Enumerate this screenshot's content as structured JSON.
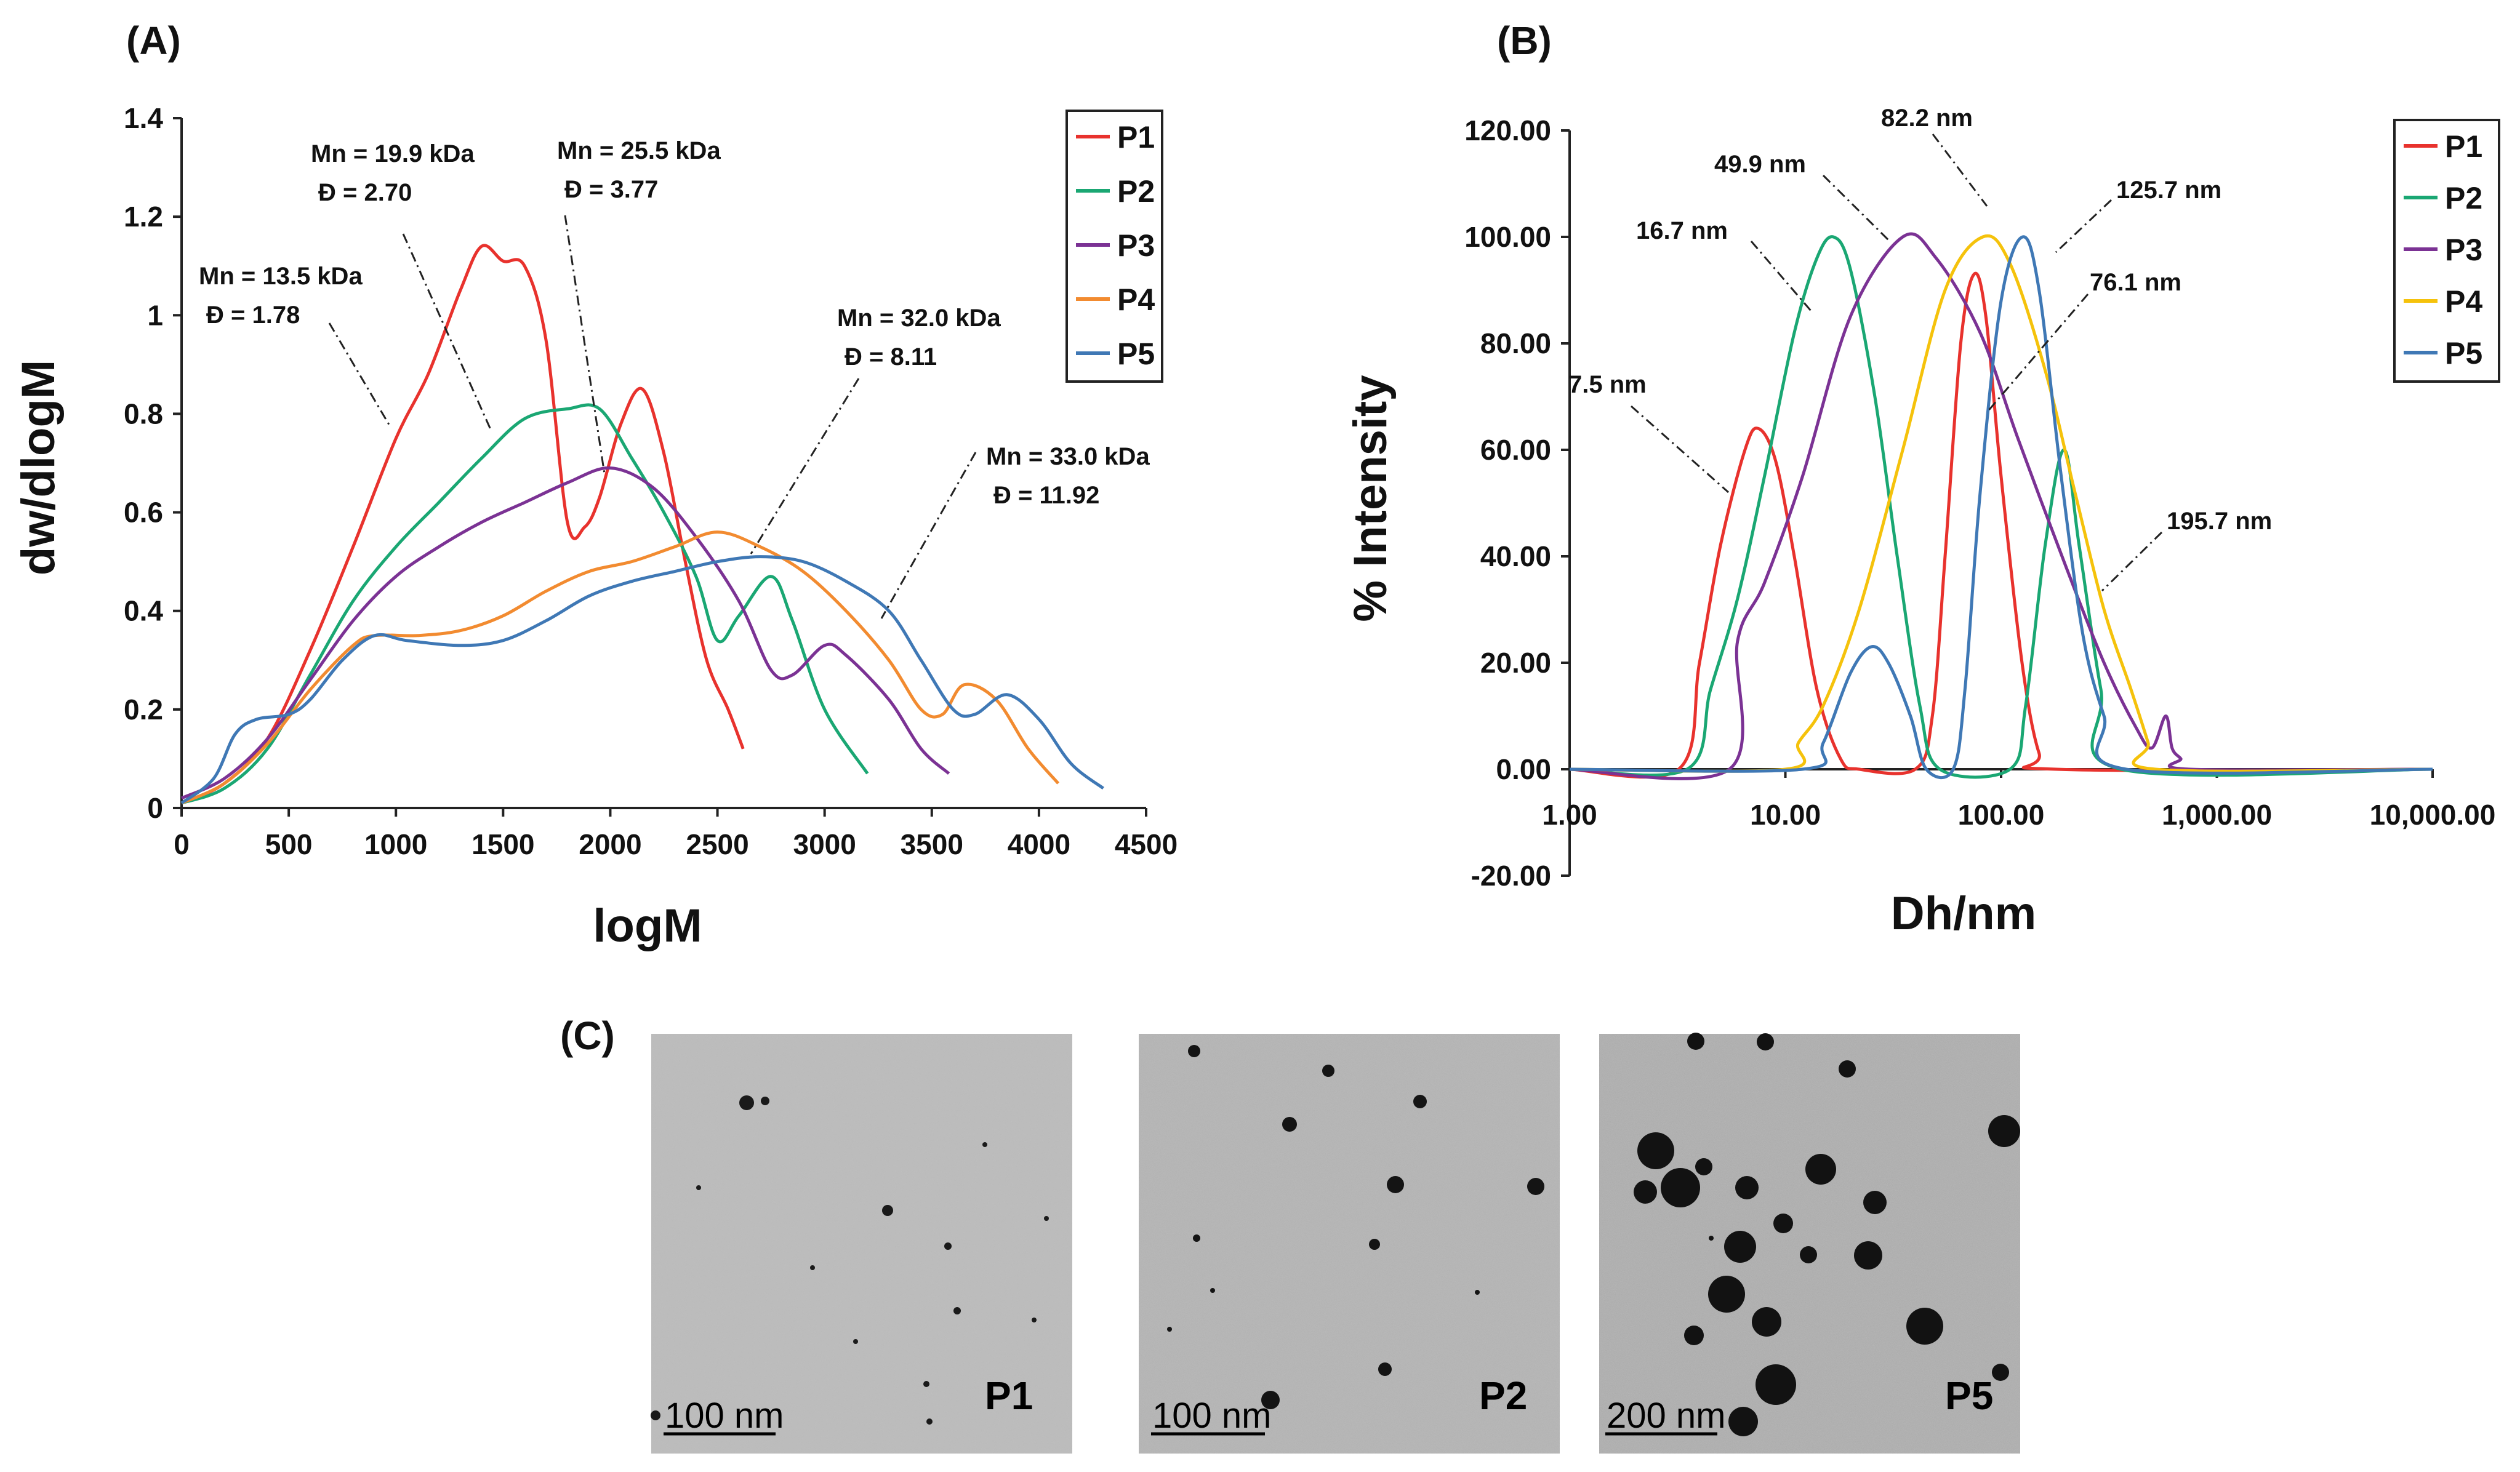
{
  "panels": {
    "A": {
      "label": "(A)",
      "chart_data": {
        "type": "line",
        "title": "",
        "xlabel": "logM",
        "ylabel": "dw/dlogM",
        "xlim": [
          0,
          4500
        ],
        "ylim": [
          0,
          1.4
        ],
        "xticks": [
          "0",
          "500",
          "1000",
          "1500",
          "2000",
          "2500",
          "3000",
          "3500",
          "4000",
          "4500"
        ],
        "yticks": [
          "0",
          "0.2",
          "0.4",
          "0.6",
          "0.8",
          "1",
          "1.2",
          "1.4"
        ],
        "legend_position": "top-right",
        "series": [
          {
            "name": "P1",
            "color": "#e8322d",
            "points": [
              [
                0,
                0.01
              ],
              [
                200,
                0.05
              ],
              [
                400,
                0.14
              ],
              [
                600,
                0.32
              ],
              [
                800,
                0.53
              ],
              [
                1000,
                0.75
              ],
              [
                1150,
                0.88
              ],
              [
                1300,
                1.05
              ],
              [
                1400,
                1.14
              ],
              [
                1500,
                1.11
              ],
              [
                1600,
                1.1
              ],
              [
                1700,
                0.95
              ],
              [
                1800,
                0.58
              ],
              [
                1880,
                0.57
              ],
              [
                1950,
                0.63
              ],
              [
                2050,
                0.78
              ],
              [
                2150,
                0.85
              ],
              [
                2250,
                0.72
              ],
              [
                2350,
                0.5
              ],
              [
                2450,
                0.3
              ],
              [
                2550,
                0.2
              ],
              [
                2620,
                0.12
              ]
            ]
          },
          {
            "name": "P2",
            "color": "#1aa773",
            "points": [
              [
                0,
                0.01
              ],
              [
                200,
                0.04
              ],
              [
                400,
                0.12
              ],
              [
                600,
                0.27
              ],
              [
                800,
                0.42
              ],
              [
                1000,
                0.53
              ],
              [
                1200,
                0.62
              ],
              [
                1400,
                0.71
              ],
              [
                1600,
                0.79
              ],
              [
                1800,
                0.81
              ],
              [
                1950,
                0.81
              ],
              [
                2100,
                0.71
              ],
              [
                2250,
                0.6
              ],
              [
                2400,
                0.47
              ],
              [
                2500,
                0.34
              ],
              [
                2600,
                0.39
              ],
              [
                2750,
                0.47
              ],
              [
                2850,
                0.38
              ],
              [
                3000,
                0.2
              ],
              [
                3200,
                0.07
              ]
            ]
          },
          {
            "name": "P3",
            "color": "#7b3294",
            "points": [
              [
                0,
                0.02
              ],
              [
                200,
                0.06
              ],
              [
                400,
                0.14
              ],
              [
                600,
                0.26
              ],
              [
                800,
                0.38
              ],
              [
                1000,
                0.47
              ],
              [
                1200,
                0.53
              ],
              [
                1400,
                0.58
              ],
              [
                1600,
                0.62
              ],
              [
                1800,
                0.66
              ],
              [
                2000,
                0.69
              ],
              [
                2200,
                0.65
              ],
              [
                2400,
                0.55
              ],
              [
                2600,
                0.42
              ],
              [
                2750,
                0.28
              ],
              [
                2850,
                0.27
              ],
              [
                3000,
                0.33
              ],
              [
                3100,
                0.31
              ],
              [
                3300,
                0.22
              ],
              [
                3450,
                0.12
              ],
              [
                3580,
                0.07
              ]
            ]
          },
          {
            "name": "P4",
            "color": "#f28b30",
            "points": [
              [
                0,
                0.01
              ],
              [
                200,
                0.05
              ],
              [
                400,
                0.13
              ],
              [
                600,
                0.24
              ],
              [
                800,
                0.33
              ],
              [
                900,
                0.35
              ],
              [
                1100,
                0.35
              ],
              [
                1300,
                0.36
              ],
              [
                1500,
                0.39
              ],
              [
                1700,
                0.44
              ],
              [
                1900,
                0.48
              ],
              [
                2100,
                0.5
              ],
              [
                2300,
                0.53
              ],
              [
                2500,
                0.56
              ],
              [
                2700,
                0.53
              ],
              [
                2900,
                0.48
              ],
              [
                3100,
                0.4
              ],
              [
                3300,
                0.3
              ],
              [
                3450,
                0.2
              ],
              [
                3550,
                0.19
              ],
              [
                3650,
                0.25
              ],
              [
                3800,
                0.22
              ],
              [
                3950,
                0.12
              ],
              [
                4090,
                0.05
              ]
            ]
          },
          {
            "name": "P5",
            "color": "#3f78b5",
            "points": [
              [
                0,
                0.01
              ],
              [
                150,
                0.06
              ],
              [
                250,
                0.15
              ],
              [
                350,
                0.18
              ],
              [
                500,
                0.19
              ],
              [
                600,
                0.22
              ],
              [
                750,
                0.3
              ],
              [
                900,
                0.35
              ],
              [
                1050,
                0.34
              ],
              [
                1300,
                0.33
              ],
              [
                1500,
                0.34
              ],
              [
                1700,
                0.38
              ],
              [
                1900,
                0.43
              ],
              [
                2100,
                0.46
              ],
              [
                2300,
                0.48
              ],
              [
                2500,
                0.5
              ],
              [
                2700,
                0.51
              ],
              [
                2900,
                0.5
              ],
              [
                3100,
                0.46
              ],
              [
                3300,
                0.4
              ],
              [
                3450,
                0.3
              ],
              [
                3600,
                0.2
              ],
              [
                3700,
                0.19
              ],
              [
                3850,
                0.23
              ],
              [
                4000,
                0.18
              ],
              [
                4150,
                0.09
              ],
              [
                4300,
                0.04
              ]
            ]
          }
        ],
        "annotations": [
          {
            "text": "Mn = 13.5 kDa",
            "text2": "Đ = 1.78"
          },
          {
            "text": "Mn = 19.9 kDa",
            "text2": "Đ = 2.70"
          },
          {
            "text": "Mn = 25.5 kDa",
            "text2": "Đ = 3.77"
          },
          {
            "text": "Mn = 32.0 kDa",
            "text2": "Đ = 8.11"
          },
          {
            "text": "Mn = 33.0 kDa",
            "text2": "Đ = 11.92"
          }
        ]
      }
    },
    "B": {
      "label": "(B)",
      "chart_data": {
        "type": "line",
        "title": "",
        "xlabel": "Dh/nm",
        "ylabel": "% Intensity",
        "xscale": "log",
        "xlim": [
          1,
          10000
        ],
        "ylim": [
          -20,
          120
        ],
        "xticks": [
          "1.00",
          "10.00",
          "100.00",
          "1,000.00",
          "10,000.00"
        ],
        "yticks": [
          "-20.00",
          "0.00",
          "20.00",
          "40.00",
          "60.00",
          "80.00",
          "100.00",
          "120.00"
        ],
        "legend_position": "top-right",
        "series": [
          {
            "name": "P1",
            "color": "#e8322d",
            "points": [
              [
                1,
                0
              ],
              [
                3.2,
                0
              ],
              [
                4,
                20
              ],
              [
                5,
                42
              ],
              [
                6.5,
                60
              ],
              [
                7.5,
                64
              ],
              [
                9,
                58
              ],
              [
                11,
                40
              ],
              [
                14,
                15
              ],
              [
                18,
                2
              ],
              [
                22,
                0
              ],
              [
                40,
                0
              ],
              [
                48,
                10
              ],
              [
                55,
                40
              ],
              [
                65,
                80
              ],
              [
                75,
                93
              ],
              [
                85,
                85
              ],
              [
                100,
                55
              ],
              [
                125,
                20
              ],
              [
                150,
                3
              ],
              [
                180,
                0
              ],
              [
                10000,
                0
              ]
            ]
          },
          {
            "name": "P2",
            "color": "#1aa773",
            "points": [
              [
                1,
                0
              ],
              [
                3.5,
                0
              ],
              [
                4.5,
                15
              ],
              [
                6,
                32
              ],
              [
                8,
                55
              ],
              [
                11,
                82
              ],
              [
                14,
                96
              ],
              [
                16.7,
                100
              ],
              [
                20,
                94
              ],
              [
                26,
                70
              ],
              [
                33,
                40
              ],
              [
                42,
                12
              ],
              [
                52,
                0
              ],
              [
                110,
                0
              ],
              [
                130,
                12
              ],
              [
                160,
                42
              ],
              [
                195.7,
                60
              ],
              [
                230,
                42
              ],
              [
                290,
                15
              ],
              [
                360,
                0
              ],
              [
                10000,
                0
              ]
            ]
          },
          {
            "name": "P3",
            "color": "#7b3294",
            "points": [
              [
                1,
                0
              ],
              [
                5.5,
                0
              ],
              [
                6,
                24
              ],
              [
                8,
                35
              ],
              [
                12,
                55
              ],
              [
                20,
                85
              ],
              [
                35,
                100
              ],
              [
                50,
                96
              ],
              [
                80,
                82
              ],
              [
                120,
                62
              ],
              [
                200,
                38
              ],
              [
                300,
                20
              ],
              [
                420,
                8
              ],
              [
                500,
                4
              ],
              [
                580,
                10
              ],
              [
                620,
                4
              ],
              [
                680,
                2
              ],
              [
                750,
                0
              ],
              [
                10000,
                0
              ]
            ]
          },
          {
            "name": "P4",
            "color": "#f5c20b",
            "points": [
              [
                1,
                0
              ],
              [
                10,
                0
              ],
              [
                11.5,
                5
              ],
              [
                15,
                12
              ],
              [
                22,
                30
              ],
              [
                35,
                60
              ],
              [
                55,
                90
              ],
              [
                82.2,
                100
              ],
              [
                110,
                95
              ],
              [
                160,
                75
              ],
              [
                220,
                52
              ],
              [
                300,
                30
              ],
              [
                400,
                15
              ],
              [
                480,
                5
              ],
              [
                520,
                0
              ],
              [
                10000,
                0
              ]
            ]
          },
          {
            "name": "P5",
            "color": "#3f78b5",
            "points": [
              [
                1,
                0
              ],
              [
                12,
                0
              ],
              [
                15,
                5
              ],
              [
                20,
                18
              ],
              [
                25,
                23
              ],
              [
                30,
                20
              ],
              [
                38,
                10
              ],
              [
                45,
                0
              ],
              [
                60,
                0
              ],
              [
                68,
                15
              ],
              [
                80,
                52
              ],
              [
                100,
                88
              ],
              [
                125.7,
                100
              ],
              [
                150,
                90
              ],
              [
                190,
                55
              ],
              [
                240,
                25
              ],
              [
                300,
                10
              ],
              [
                380,
                0
              ],
              [
                10000,
                0
              ]
            ]
          }
        ],
        "annotations": [
          {
            "text": "7.5 nm"
          },
          {
            "text": "16.7 nm"
          },
          {
            "text": "49.9 nm"
          },
          {
            "text": "82.2 nm"
          },
          {
            "text": "125.7 nm"
          },
          {
            "text": "76.1 nm"
          },
          {
            "text": "195.7 nm"
          }
        ]
      }
    },
    "C": {
      "label": "(C)",
      "images": [
        {
          "sample": "P1",
          "scale": "100 nm"
        },
        {
          "sample": "P2",
          "scale": "100 nm"
        },
        {
          "sample": "P5",
          "scale": "200 nm"
        }
      ]
    }
  }
}
